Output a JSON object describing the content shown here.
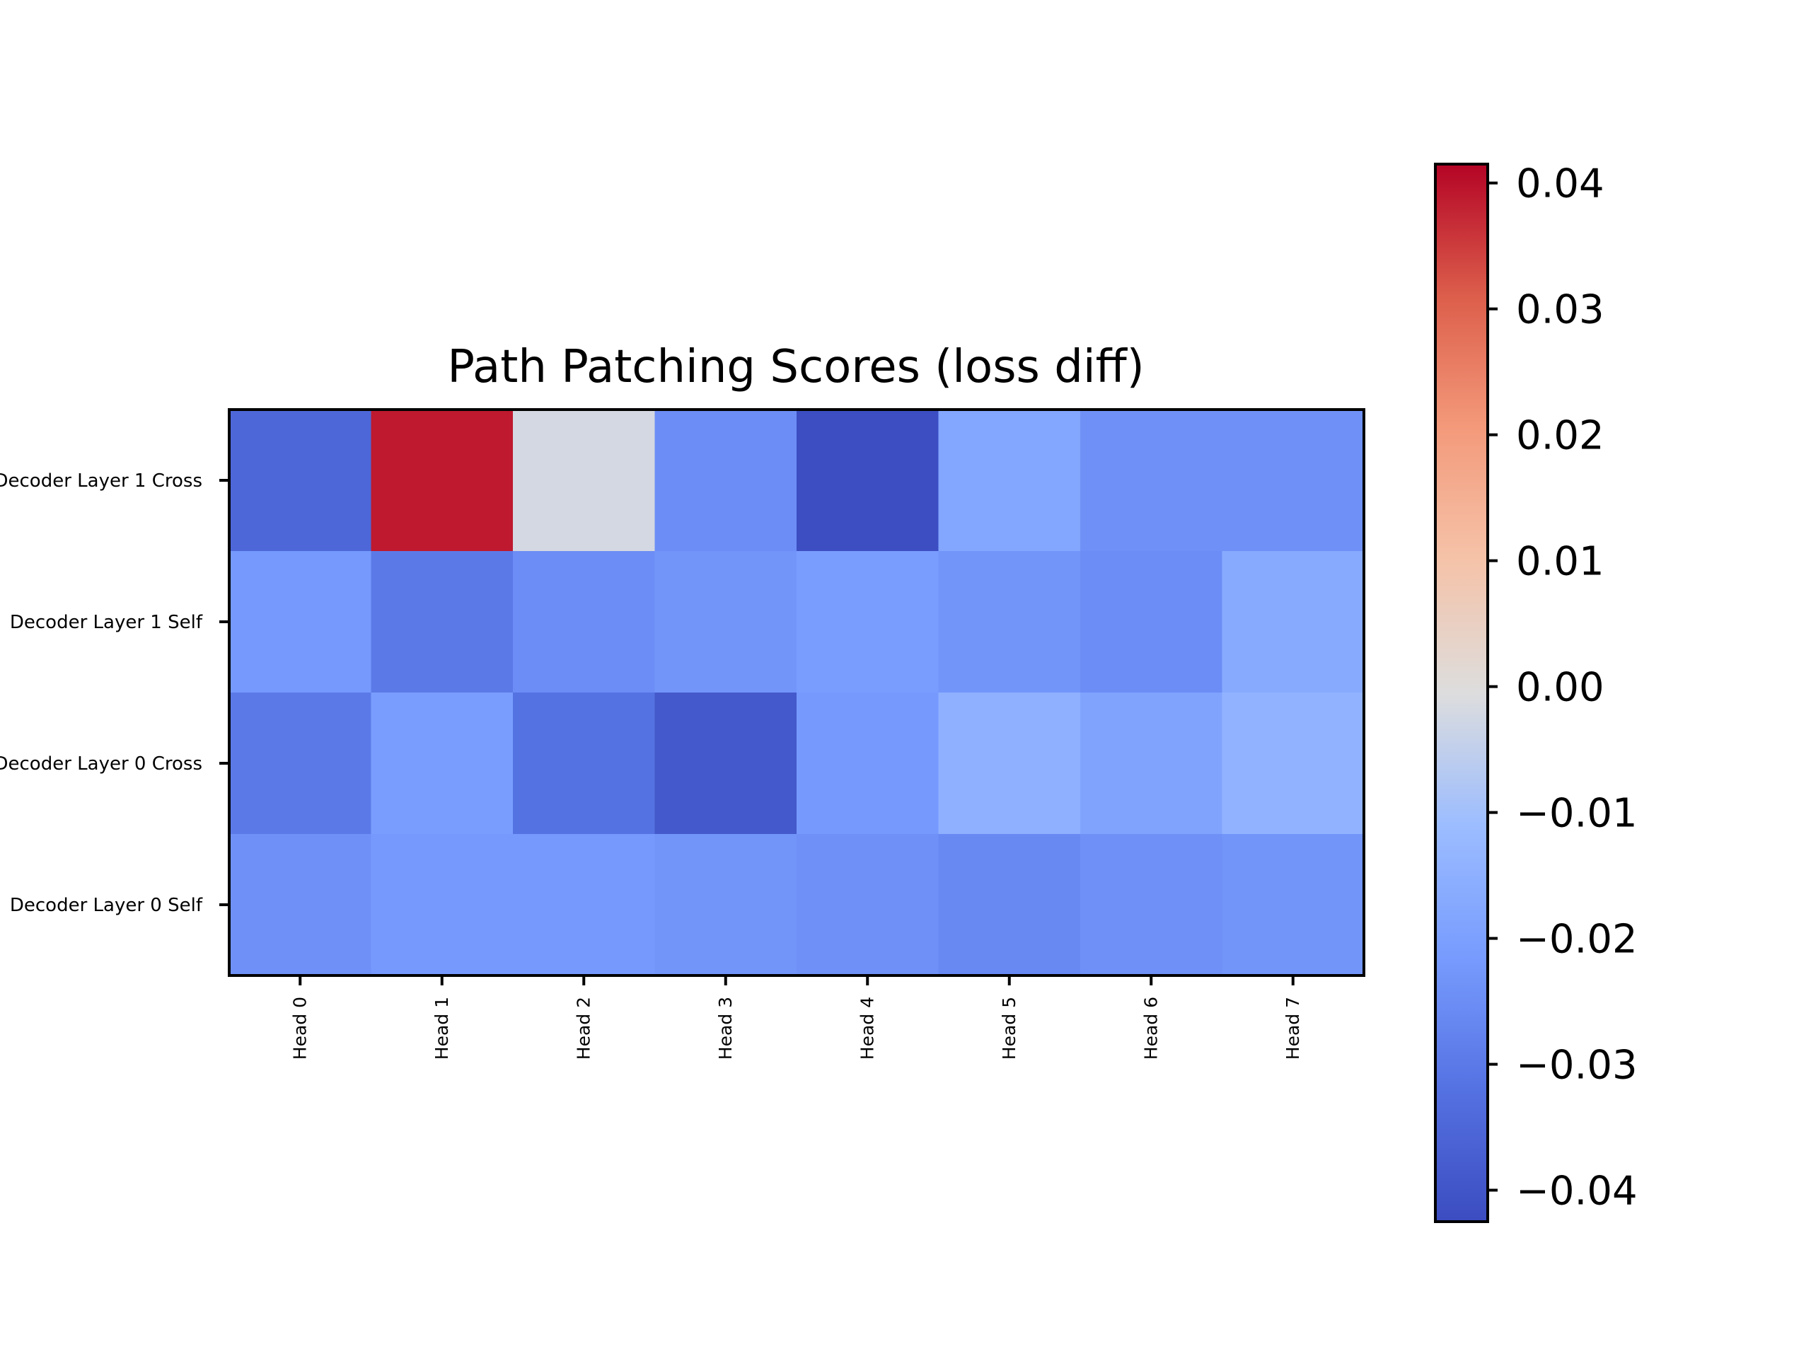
{
  "chart_data": {
    "type": "heatmap",
    "title": "Path Patching Scores (loss diff)",
    "xlabel": "",
    "ylabel": "",
    "x_categories": [
      "Head 0",
      "Head 1",
      "Head 2",
      "Head 3",
      "Head 4",
      "Head 5",
      "Head 6",
      "Head 7"
    ],
    "y_categories": [
      "Decoder Layer 1 Cross",
      "Decoder Layer 1 Self",
      "Decoder Layer 0 Cross",
      "Decoder Layer 0 Self"
    ],
    "values": [
      [
        -0.035,
        0.039,
        -0.002,
        -0.025,
        -0.042,
        -0.018,
        -0.024,
        -0.024
      ],
      [
        -0.022,
        -0.03,
        -0.025,
        -0.023,
        -0.021,
        -0.023,
        -0.025,
        -0.017
      ],
      [
        -0.03,
        -0.021,
        -0.032,
        -0.039,
        -0.022,
        -0.015,
        -0.019,
        -0.014
      ],
      [
        -0.024,
        -0.022,
        -0.022,
        -0.023,
        -0.024,
        -0.026,
        -0.024,
        -0.023
      ]
    ],
    "colormap": "coolwarm",
    "vmin": -0.0425,
    "vmax": 0.0415,
    "colorbar": {
      "ticks": [
        0.04,
        0.03,
        0.02,
        0.01,
        0.0,
        -0.01,
        -0.02,
        -0.03,
        -0.04
      ],
      "tick_labels": [
        "0.04",
        "0.03",
        "0.02",
        "0.01",
        "0.00",
        "−0.01",
        "−0.02",
        "−0.03",
        "−0.04"
      ]
    },
    "grid": false,
    "colorbar_position": "right"
  }
}
